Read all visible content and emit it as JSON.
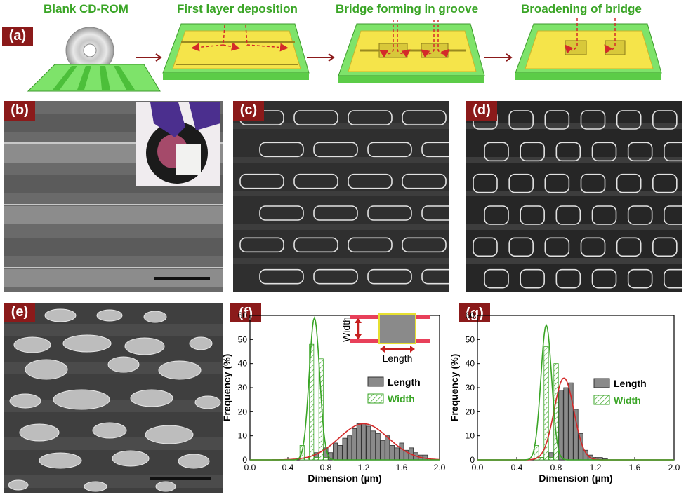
{
  "panel_labels": [
    "(a)",
    "(b)",
    "(c)",
    "(d)",
    "(e)",
    "(f)",
    "(g)"
  ],
  "steps": [
    {
      "title": "Blank CD-ROM"
    },
    {
      "title": "First layer deposition"
    },
    {
      "title": "Bridge forming in groove"
    },
    {
      "title": "Broadening of bridge"
    }
  ],
  "colors": {
    "label_bg": "#8b1a1a",
    "step_title": "#3aa526",
    "substrate_green": "#7ee36a",
    "film_yellow": "#f5e44a",
    "arrow_red": "#d42a2a",
    "length_bar": "#8a8a8a",
    "width_hatch": "#3aa526",
    "length_fit": "#d42a2a",
    "width_fit": "#3aa526"
  },
  "inset_schematic": {
    "width_label": "Width",
    "length_label": "Length"
  },
  "chart_data": [
    {
      "panel": "(f)",
      "type": "bar",
      "xlabel": "Dimension (µm)",
      "ylabel": "Frequency (%)",
      "xlim": [
        0.0,
        2.0
      ],
      "ylim": [
        0,
        60
      ],
      "xticks": [
        "0.0",
        "0.4",
        "0.8",
        "1.2",
        "1.6",
        "2.0"
      ],
      "yticks": [
        "0",
        "10",
        "20",
        "30",
        "40",
        "50",
        "60"
      ],
      "legend": [
        "Length",
        "Width"
      ],
      "legend_position": "right",
      "series": [
        {
          "name": "Length",
          "x": [
            0.6,
            0.65,
            0.7,
            0.75,
            0.8,
            0.85,
            0.9,
            0.95,
            1.0,
            1.05,
            1.1,
            1.15,
            1.2,
            1.25,
            1.3,
            1.35,
            1.4,
            1.45,
            1.5,
            1.55,
            1.6,
            1.65,
            1.7,
            1.75,
            1.8,
            1.85
          ],
          "values": [
            0.5,
            1,
            3,
            4,
            5,
            3,
            7,
            6,
            9,
            10,
            13,
            15,
            15,
            14,
            12,
            11,
            8,
            10,
            6,
            5,
            7,
            4,
            5,
            3,
            2,
            2
          ]
        },
        {
          "name": "Width",
          "x": [
            0.55,
            0.6,
            0.65,
            0.7,
            0.75,
            0.8
          ],
          "values": [
            6,
            1,
            48,
            1,
            42,
            1
          ]
        }
      ],
      "fits": [
        {
          "series": "Length",
          "mean": 1.2,
          "sigma": 0.26,
          "peak": 15
        },
        {
          "series": "Width",
          "mean": 0.68,
          "sigma": 0.055,
          "peak": 59
        }
      ]
    },
    {
      "panel": "(g)",
      "type": "bar",
      "xlabel": "Dimension (µm)",
      "ylabel": "Frequency (%)",
      "xlim": [
        0.0,
        2.0
      ],
      "ylim": [
        0,
        60
      ],
      "xticks": [
        "0.0",
        "0.4",
        "0.8",
        "1.2",
        "1.6",
        "2.0"
      ],
      "yticks": [
        "0",
        "10",
        "20",
        "30",
        "40",
        "50",
        "60"
      ],
      "legend": [
        "Length",
        "Width"
      ],
      "legend_position": "top-right",
      "series": [
        {
          "name": "Length",
          "x": [
            0.65,
            0.7,
            0.75,
            0.8,
            0.85,
            0.9,
            0.95,
            1.0,
            1.05,
            1.1,
            1.15,
            1.2,
            1.25,
            1.3
          ],
          "values": [
            1,
            2,
            3,
            22,
            29,
            30,
            32,
            21,
            11,
            4,
            2,
            1,
            1,
            0.5
          ]
        },
        {
          "name": "Width",
          "x": [
            0.6,
            0.65,
            0.7,
            0.75,
            0.8
          ],
          "values": [
            6,
            1,
            47,
            1,
            40
          ]
        }
      ],
      "fits": [
        {
          "series": "Length",
          "mean": 0.88,
          "sigma": 0.1,
          "peak": 34
        },
        {
          "series": "Width",
          "mean": 0.7,
          "sigma": 0.055,
          "peak": 56
        }
      ]
    }
  ]
}
